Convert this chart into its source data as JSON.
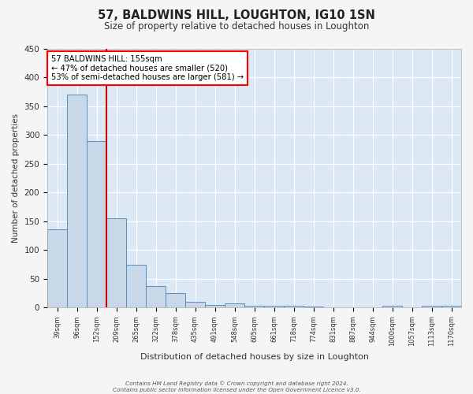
{
  "title": "57, BALDWINS HILL, LOUGHTON, IG10 1SN",
  "subtitle": "Size of property relative to detached houses in Loughton",
  "xlabel": "Distribution of detached houses by size in Loughton",
  "ylabel": "Number of detached properties",
  "footer_line1": "Contains HM Land Registry data © Crown copyright and database right 2024.",
  "footer_line2": "Contains public sector information licensed under the Open Government Licence v3.0.",
  "bin_labels": [
    "39sqm",
    "96sqm",
    "152sqm",
    "209sqm",
    "265sqm",
    "322sqm",
    "378sqm",
    "435sqm",
    "491sqm",
    "548sqm",
    "605sqm",
    "661sqm",
    "718sqm",
    "774sqm",
    "831sqm",
    "887sqm",
    "944sqm",
    "1000sqm",
    "1057sqm",
    "1113sqm",
    "1170sqm"
  ],
  "bar_values": [
    136,
    370,
    289,
    155,
    74,
    38,
    25,
    10,
    5,
    7,
    4,
    4,
    4,
    2,
    0,
    0,
    0,
    3,
    0,
    3,
    3
  ],
  "bar_color": "#c8d8e8",
  "bar_edge_color": "#5b8db8",
  "fig_bg_color": "#f5f5f5",
  "plot_bg_color": "#dce9f5",
  "grid_color": "#ffffff",
  "annotation_line1": "57 BALDWINS HILL: 155sqm",
  "annotation_line2": "← 47% of detached houses are smaller (520)",
  "annotation_line3": "53% of semi-detached houses are larger (581) →",
  "marker_bar_index": 2,
  "marker_color": "#cc0000",
  "ylim": [
    0,
    450
  ],
  "yticks": [
    0,
    50,
    100,
    150,
    200,
    250,
    300,
    350,
    400,
    450
  ]
}
